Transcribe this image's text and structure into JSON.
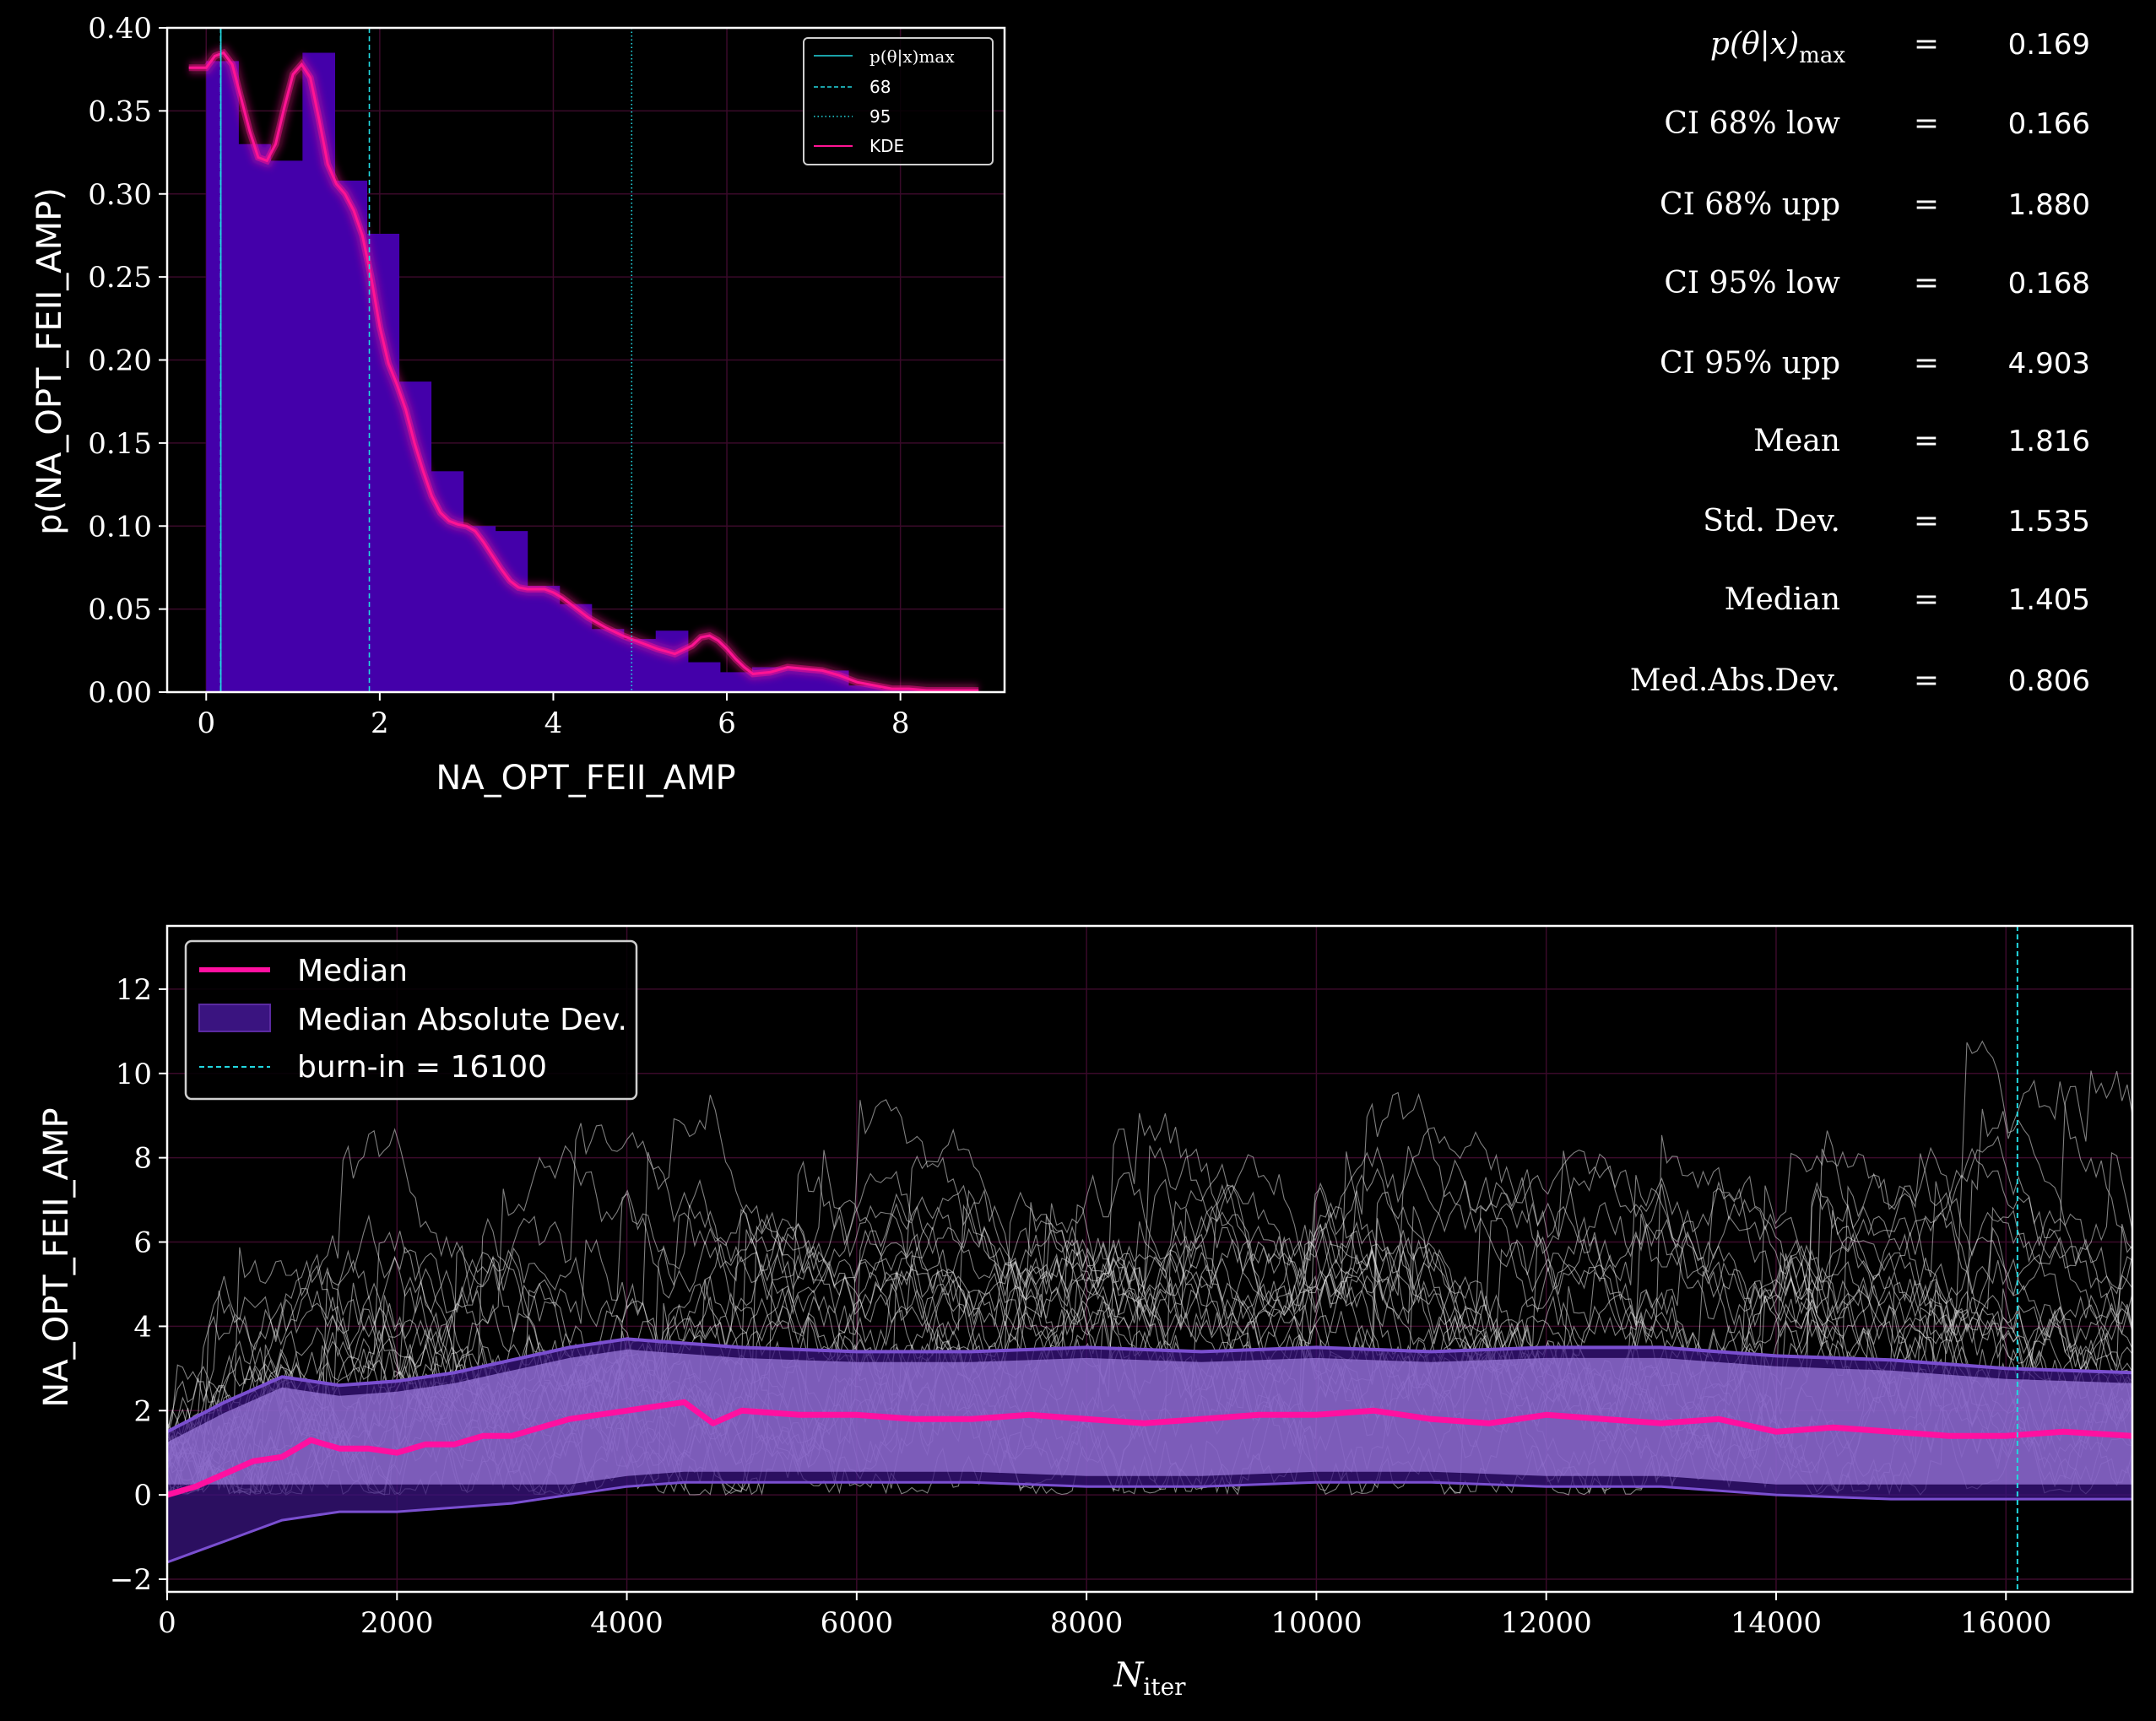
{
  "colors": {
    "background": "#000000",
    "histogram": "#4400aa",
    "kde": "#ff1493",
    "ci_lines": "#22d8e0",
    "chains": "#e8e8e8",
    "mad_band": "#a07de0",
    "mad_band_dark": "#3a1480",
    "grid": "#3a0a2a",
    "median": "#ff10a0"
  },
  "stats": [
    {
      "label": "p(θ|x)max",
      "value": "0.169"
    },
    {
      "label": "CI 68% low",
      "value": "0.166"
    },
    {
      "label": "CI 68% upp",
      "value": "1.880"
    },
    {
      "label": "CI 95% low",
      "value": "0.168"
    },
    {
      "label": "CI 95% upp",
      "value": "4.903"
    },
    {
      "label": "Mean",
      "value": "1.816"
    },
    {
      "label": "Std. Dev.",
      "value": "1.535"
    },
    {
      "label": "Median",
      "value": "1.405"
    },
    {
      "label": "Med.Abs.Dev.",
      "value": "0.806"
    }
  ],
  "stats_equals": "=",
  "chart_data": [
    {
      "type": "bar",
      "xlabel": "NA_OPT_FEII_AMP",
      "ylabel": "p(NA_OPT_FEII_AMP)",
      "xlim": [
        -0.45,
        9.2
      ],
      "ylim": [
        0,
        0.4
      ],
      "xticks": [
        0,
        2,
        4,
        6,
        8
      ],
      "yticks": [
        "0.00",
        "0.05",
        "0.10",
        "0.15",
        "0.20",
        "0.25",
        "0.30",
        "0.35",
        "0.40"
      ],
      "grid": true,
      "legend_position": "top-right",
      "legend": [
        "p(θ|x)max",
        "68",
        "95",
        "KDE"
      ],
      "bin_edges": [
        0.0,
        0.37,
        0.74,
        1.11,
        1.48,
        1.85,
        2.22,
        2.59,
        2.96,
        3.33,
        3.7,
        4.07,
        4.44,
        4.81,
        5.18,
        5.55,
        5.92,
        6.29,
        6.66,
        7.03,
        7.4,
        7.77,
        8.14,
        8.51,
        8.88
      ],
      "values": [
        0.38,
        0.33,
        0.32,
        0.385,
        0.308,
        0.276,
        0.187,
        0.133,
        0.1,
        0.097,
        0.064,
        0.053,
        0.038,
        0.032,
        0.037,
        0.018,
        0.012,
        0.015,
        0.014,
        0.013,
        0.004,
        0.002,
        0.001,
        0.001
      ],
      "kde": {
        "x": [
          -0.2,
          0.0,
          0.1,
          0.2,
          0.3,
          0.4,
          0.5,
          0.6,
          0.7,
          0.8,
          0.9,
          1.0,
          1.1,
          1.2,
          1.3,
          1.4,
          1.5,
          1.6,
          1.7,
          1.8,
          1.9,
          2.0,
          2.1,
          2.2,
          2.3,
          2.4,
          2.5,
          2.6,
          2.7,
          2.8,
          2.9,
          3.0,
          3.1,
          3.2,
          3.3,
          3.4,
          3.5,
          3.6,
          3.7,
          3.8,
          3.9,
          4.0,
          4.1,
          4.2,
          4.3,
          4.4,
          4.5,
          4.6,
          4.8,
          5.0,
          5.2,
          5.4,
          5.6,
          5.7,
          5.8,
          5.9,
          6.0,
          6.1,
          6.2,
          6.3,
          6.5,
          6.7,
          6.9,
          7.1,
          7.3,
          7.5,
          7.7,
          7.9,
          8.1,
          8.3,
          8.5,
          8.7,
          8.9
        ],
        "y": [
          0.376,
          0.376,
          0.383,
          0.385,
          0.378,
          0.358,
          0.338,
          0.322,
          0.32,
          0.33,
          0.352,
          0.372,
          0.378,
          0.37,
          0.345,
          0.318,
          0.306,
          0.3,
          0.29,
          0.275,
          0.25,
          0.22,
          0.198,
          0.185,
          0.17,
          0.15,
          0.133,
          0.118,
          0.108,
          0.103,
          0.101,
          0.1,
          0.097,
          0.09,
          0.082,
          0.074,
          0.067,
          0.063,
          0.062,
          0.062,
          0.062,
          0.06,
          0.057,
          0.053,
          0.049,
          0.045,
          0.042,
          0.039,
          0.034,
          0.03,
          0.026,
          0.023,
          0.028,
          0.033,
          0.034,
          0.031,
          0.026,
          0.02,
          0.015,
          0.011,
          0.012,
          0.015,
          0.014,
          0.013,
          0.01,
          0.006,
          0.004,
          0.002,
          0.002,
          0.001,
          0.001,
          0.001,
          0.001
        ]
      },
      "vlines": [
        {
          "name": "p(θ|x)max",
          "x": 0.169,
          "style": "solid"
        },
        {
          "name": "68",
          "x": 0.166,
          "style": "dashed"
        },
        {
          "name": "68",
          "x": 1.88,
          "style": "dashed"
        },
        {
          "name": "95",
          "x": 0.168,
          "style": "dotted"
        },
        {
          "name": "95",
          "x": 4.903,
          "style": "dotted"
        }
      ]
    },
    {
      "type": "line",
      "xlabel": "N_iter",
      "ylabel": "NA_OPT_FEII_AMP",
      "xlim": [
        0,
        17100
      ],
      "ylim": [
        -2.3,
        13.5
      ],
      "xticks": [
        0,
        2000,
        4000,
        6000,
        8000,
        10000,
        12000,
        14000,
        16000
      ],
      "yticks": [
        "−2",
        "0",
        "2",
        "4",
        "6",
        "8",
        "10",
        "12"
      ],
      "grid": true,
      "legend_position": "top-left",
      "legend": [
        "Median",
        "Median Absolute Dev.",
        "burn-in = 16100"
      ],
      "burn_in": 16100,
      "series": [
        {
          "name": "Median",
          "x": [
            0,
            250,
            500,
            750,
            1000,
            1250,
            1500,
            1750,
            2000,
            2250,
            2500,
            2750,
            3000,
            3250,
            3500,
            3750,
            4000,
            4250,
            4500,
            4750,
            5000,
            5500,
            6000,
            6500,
            7000,
            7500,
            8000,
            8500,
            9000,
            9500,
            10000,
            10500,
            11000,
            11500,
            12000,
            12500,
            13000,
            13500,
            14000,
            14500,
            15000,
            15500,
            16000,
            16500,
            17100
          ],
          "values": [
            0.0,
            0.2,
            0.5,
            0.8,
            0.9,
            1.3,
            1.1,
            1.1,
            1.0,
            1.2,
            1.2,
            1.4,
            1.4,
            1.6,
            1.8,
            1.9,
            2.0,
            2.1,
            2.2,
            1.7,
            2.0,
            1.9,
            1.9,
            1.8,
            1.8,
            1.9,
            1.8,
            1.7,
            1.8,
            1.9,
            1.9,
            2.0,
            1.8,
            1.7,
            1.9,
            1.8,
            1.7,
            1.8,
            1.5,
            1.6,
            1.5,
            1.4,
            1.4,
            1.5,
            1.4
          ]
        },
        {
          "name": "Median Absolute Dev.",
          "x": [
            0,
            500,
            1000,
            1500,
            2000,
            2500,
            3000,
            3500,
            4000,
            4500,
            5000,
            6000,
            7000,
            8000,
            9000,
            10000,
            11000,
            12000,
            13000,
            14000,
            15000,
            16000,
            17100
          ],
          "upper": [
            1.5,
            2.2,
            2.8,
            2.6,
            2.7,
            2.9,
            3.2,
            3.5,
            3.7,
            3.6,
            3.5,
            3.4,
            3.4,
            3.5,
            3.4,
            3.5,
            3.4,
            3.5,
            3.5,
            3.3,
            3.2,
            3.0,
            2.9
          ],
          "lower": [
            -1.6,
            -1.1,
            -0.6,
            -0.4,
            -0.4,
            -0.3,
            -0.2,
            0.0,
            0.2,
            0.3,
            0.3,
            0.3,
            0.3,
            0.2,
            0.2,
            0.3,
            0.3,
            0.2,
            0.2,
            0.0,
            -0.1,
            -0.1,
            -0.1
          ]
        }
      ]
    }
  ]
}
